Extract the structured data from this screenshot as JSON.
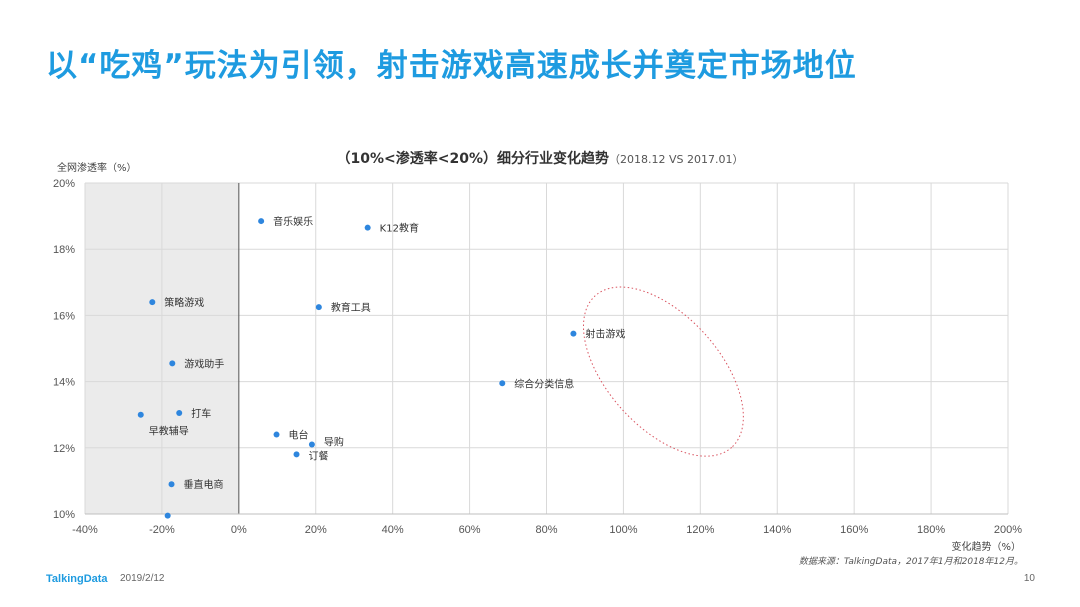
{
  "page": {
    "headline": "以“吃鸡”玩法为引领，射击游戏高速成长并奠定市场地位",
    "footer_logo": "TalkingData",
    "footer_date": "2019/2/12",
    "page_number": "10"
  },
  "chart_data": {
    "type": "scatter",
    "title": "（10%<渗透率<20%）细分行业变化趋势",
    "subtitle": "（2018.12  VS 2017.01）",
    "ylabel": "全网渗透率（%）",
    "xlabel": "变化趋势（%）",
    "source": "数据来源：TalkingData，2017年1月和2018年12月。",
    "xlim": [
      -40,
      200
    ],
    "ylim": [
      10,
      20
    ],
    "x_ticks": [
      -40,
      -20,
      0,
      20,
      40,
      60,
      80,
      100,
      120,
      140,
      160,
      180,
      200
    ],
    "y_ticks": [
      10,
      12,
      14,
      16,
      18,
      20
    ],
    "x_tick_labels": [
      "-40%",
      "-20%",
      "0%",
      "20%",
      "40%",
      "60%",
      "80%",
      "100%",
      "120%",
      "140%",
      "160%",
      "180%",
      "200%"
    ],
    "y_tick_labels": [
      "10%",
      "12%",
      "14%",
      "16%",
      "18%",
      "20%"
    ],
    "shaded_region_x": [
      -40,
      0
    ],
    "highlight_label": "射击游戏",
    "point_color": "#2e86de",
    "points": [
      {
        "label": "音乐娱乐",
        "x": 5.8,
        "y": 18.85
      },
      {
        "label": "K12教育",
        "x": 33.5,
        "y": 18.65
      },
      {
        "label": "策略游戏",
        "x": -22.5,
        "y": 16.4
      },
      {
        "label": "教育工具",
        "x": 20.8,
        "y": 16.25
      },
      {
        "label": "射击游戏",
        "x": 87,
        "y": 15.45
      },
      {
        "label": "游戏助手",
        "x": -17.3,
        "y": 14.55
      },
      {
        "label": "综合分类信息",
        "x": 68.5,
        "y": 13.95
      },
      {
        "label": "打车",
        "x": -15.5,
        "y": 13.05
      },
      {
        "label": "早教辅导",
        "x": -25.5,
        "y": 13.0
      },
      {
        "label": "电台",
        "x": 9.8,
        "y": 12.4
      },
      {
        "label": "导购",
        "x": 19,
        "y": 12.1
      },
      {
        "label": "订餐",
        "x": 15,
        "y": 11.8
      },
      {
        "label": "垂直电商",
        "x": -17.5,
        "y": 10.9
      },
      {
        "label": "",
        "x": -18.5,
        "y": 9.95
      }
    ]
  }
}
